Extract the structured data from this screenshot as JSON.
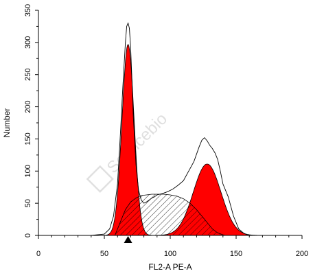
{
  "chart_data": {
    "type": "area",
    "title": "",
    "xlabel": "FL2-A PE-A",
    "ylabel": "Number",
    "xlim": [
      0,
      200
    ],
    "ylim": [
      0,
      350
    ],
    "x_ticks": [
      0,
      50,
      100,
      150,
      200
    ],
    "y_ticks": [
      0,
      50,
      100,
      150,
      200,
      250,
      300,
      350
    ],
    "grid": false,
    "legend": "none",
    "marker": {
      "x": 68,
      "shape": "triangle",
      "color": "#000000"
    },
    "series": [
      {
        "kind": "histogram-outline",
        "color": "#000000",
        "x": [
          40,
          50,
          54,
          57,
          60,
          62,
          64,
          66,
          67,
          68,
          69,
          70,
          71,
          72,
          74,
          76,
          78,
          80,
          82,
          84,
          86,
          88,
          90,
          94,
          98,
          102,
          106,
          110,
          114,
          118,
          122,
          124,
          126,
          128,
          130,
          132,
          134,
          136,
          138,
          140,
          144,
          148,
          152,
          156,
          160,
          170
        ],
        "y": [
          0,
          2,
          10,
          30,
          80,
          150,
          230,
          300,
          325,
          330,
          322,
          290,
          240,
          185,
          110,
          70,
          55,
          50,
          52,
          55,
          58,
          60,
          63,
          65,
          68,
          72,
          78,
          85,
          100,
          115,
          138,
          148,
          152,
          147,
          140,
          135,
          128,
          118,
          100,
          80,
          60,
          30,
          10,
          3,
          0,
          0
        ]
      },
      {
        "kind": "fitted-peak-g1",
        "color": "#ff0000",
        "mean": 68,
        "sd": 4.6,
        "peak": 297
      },
      {
        "kind": "fitted-s-phase",
        "color": "#000000",
        "fill": "hatched",
        "x": [
          58,
          62,
          66,
          70,
          74,
          78,
          82,
          86,
          90,
          95,
          100,
          105,
          110,
          115,
          120,
          124,
          128,
          132,
          136,
          140,
          142
        ],
        "y": [
          0,
          20,
          40,
          52,
          58,
          62,
          63,
          64,
          64,
          64,
          63,
          61,
          57,
          50,
          40,
          30,
          20,
          10,
          4,
          1,
          0
        ]
      },
      {
        "kind": "fitted-peak-g2",
        "color": "#ff0000",
        "mean": 128,
        "sd": 10.5,
        "peak": 111
      }
    ]
  },
  "watermark": {
    "text": "Servicebio"
  }
}
